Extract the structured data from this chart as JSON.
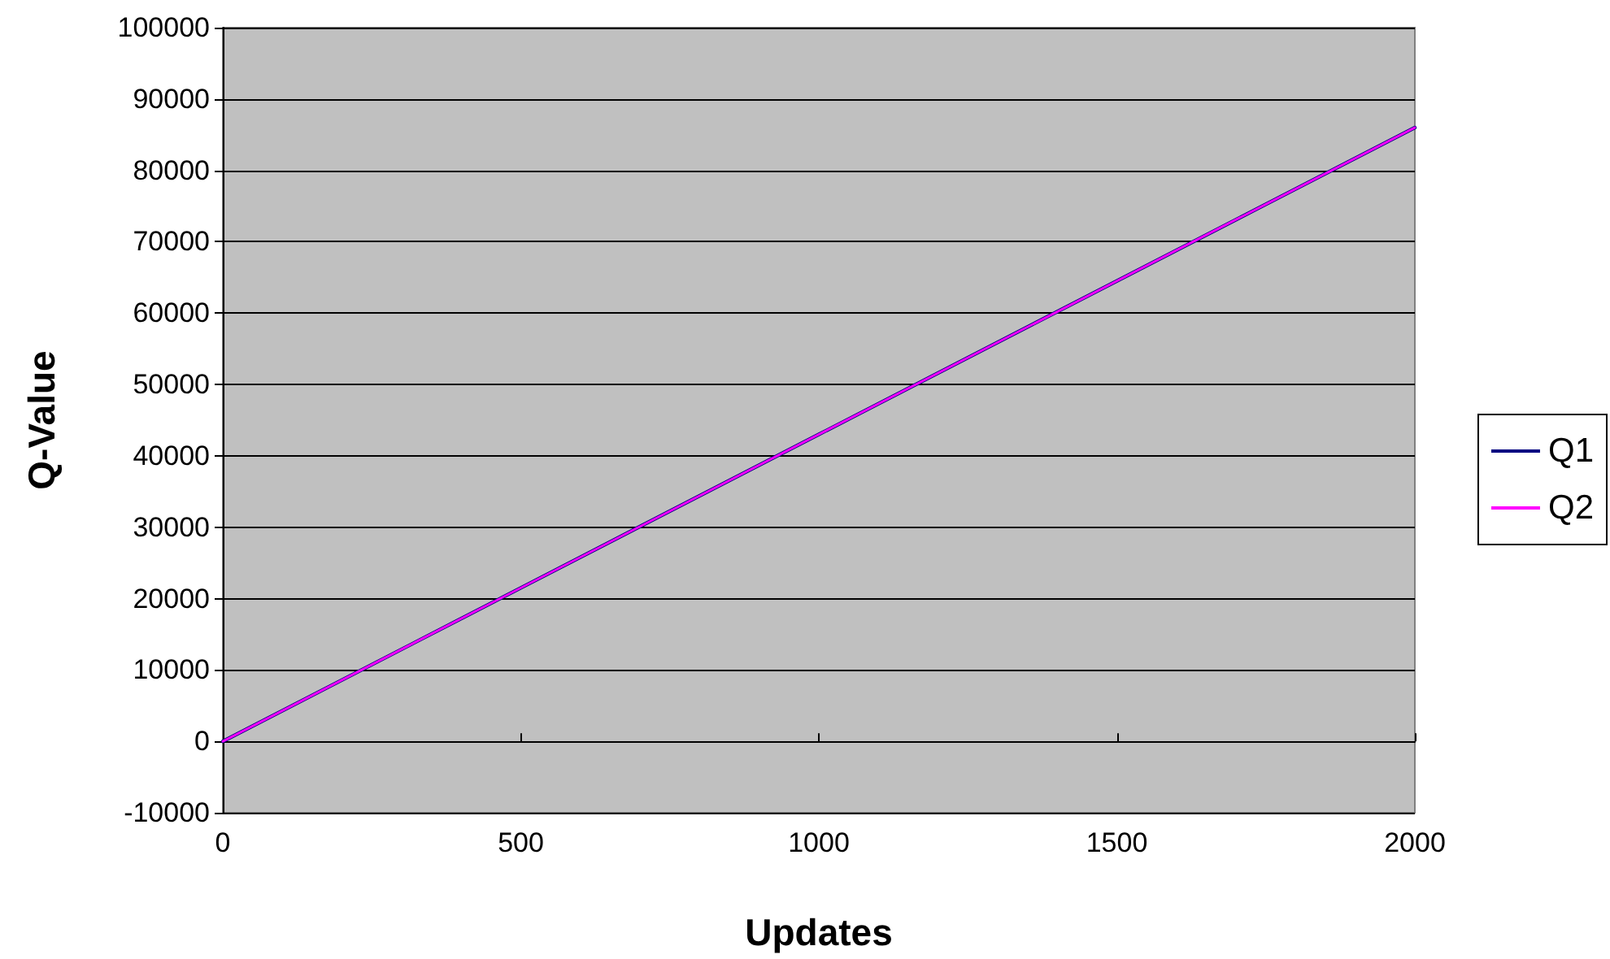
{
  "chart_data": {
    "type": "line",
    "xlabel": "Updates",
    "ylabel": "Q-Value",
    "x": [
      0,
      500,
      1000,
      1500,
      2000
    ],
    "series": [
      {
        "name": "Q1",
        "color": "#000080",
        "values": [
          0,
          21500,
          43000,
          64500,
          86000
        ]
      },
      {
        "name": "Q2",
        "color": "#ff00ff",
        "values": [
          0,
          21500,
          43000,
          64500,
          86000
        ]
      }
    ],
    "xlim": [
      0,
      2000
    ],
    "xticks": [
      0,
      500,
      1000,
      1500,
      2000
    ],
    "ylim": [
      -10000,
      100000
    ],
    "yticks": [
      -10000,
      0,
      10000,
      20000,
      30000,
      40000,
      50000,
      60000,
      70000,
      80000,
      90000,
      100000
    ],
    "grid": "y",
    "legend": "right",
    "marker": "none",
    "line_style": "solid"
  }
}
